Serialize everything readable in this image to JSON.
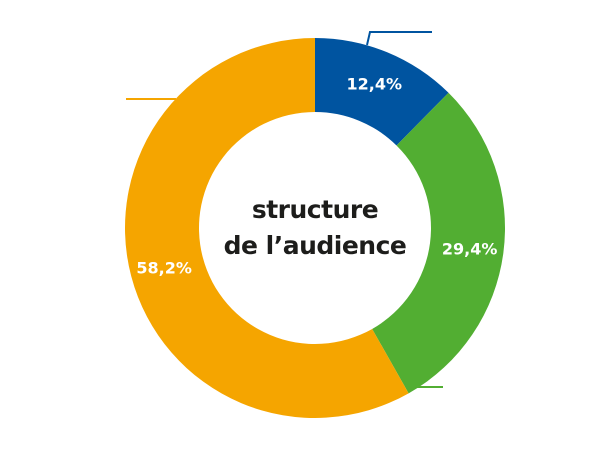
{
  "chart_data": {
    "type": "pie",
    "variant": "donut",
    "title_lines": [
      "structure",
      "de l’audience"
    ],
    "slices": [
      {
        "value": 12.4,
        "label": "12,4%",
        "color": "#0054a0"
      },
      {
        "value": 29.4,
        "label": "29,4%",
        "color": "#52ae32"
      },
      {
        "value": 58.2,
        "label": "58,2%",
        "color": "#f5a500"
      }
    ],
    "legend": "none",
    "label_color": "#ffffff",
    "title_color": "#1d1d1b"
  }
}
